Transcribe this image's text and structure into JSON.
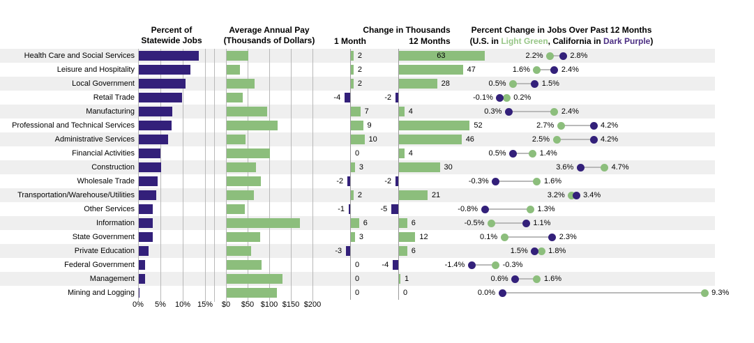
{
  "colors": {
    "purple": "#33207a",
    "green": "#8cbe7c",
    "stripe": "#efefef",
    "legend_green": "#97c687",
    "legend_purple": "#4b2e83",
    "gridline": "#b8b8b8"
  },
  "headers": {
    "jobs_line1": "Percent of",
    "jobs_line2": "Statewide Jobs",
    "pay_line1": "Average Annual Pay",
    "pay_line2": "(Thousands of Dollars)",
    "change_title": "Change in Thousands",
    "change_col1": "1 Month",
    "change_col2": "12 Months",
    "pct_title": "Percent Change in Jobs Over Past 12 Months",
    "pct_sub_p1": "(U.S. in ",
    "pct_sub_green": "Light Green",
    "pct_sub_p2": ", California in ",
    "pct_sub_purple": "Dark Purple",
    "pct_sub_p3": ")"
  },
  "axes": {
    "jobs_ticks": [
      "0%",
      "5%",
      "10%",
      "15%"
    ],
    "pay_ticks": [
      "$0",
      "$50",
      "$100",
      "$150",
      "$200"
    ]
  },
  "chart_data": {
    "type": "table",
    "notes": "Four linked panels sharing 18 industry rows: purple bar chart of percent of statewide jobs (0-15% axis), green bar chart of average annual pay in $ thousands ($0-$200 axis), 1-month and 12-month employment change in thousands (green positive, purple negative bars), and a dumbbell plot of 12-month percent change (U.S. light green dot, California dark purple dot).",
    "columns": [
      "Industry",
      "Percent of Statewide Jobs",
      "Average Annual Pay ($K)",
      "Change 1 Month (thousands)",
      "Change 12 Months (thousands)",
      "US 12-mo % Change",
      "CA 12-mo % Change"
    ],
    "rows": [
      {
        "label": "Health Care and Social Services",
        "statewide_pct": 13.4,
        "pay_k": 50,
        "chg_1m": 2,
        "chg_12m": 63,
        "us_pct": 2.2,
        "ca_pct": 2.8
      },
      {
        "label": "Leisure and Hospitality",
        "statewide_pct": 11.6,
        "pay_k": 31,
        "chg_1m": 2,
        "chg_12m": 47,
        "us_pct": 1.6,
        "ca_pct": 2.4
      },
      {
        "label": "Local Government",
        "statewide_pct": 10.5,
        "pay_k": 64,
        "chg_1m": 2,
        "chg_12m": 28,
        "us_pct": 0.5,
        "ca_pct": 1.5
      },
      {
        "label": "Retail Trade",
        "statewide_pct": 9.7,
        "pay_k": 37,
        "chg_1m": -4,
        "chg_12m": -2,
        "us_pct": 0.2,
        "ca_pct": -0.1
      },
      {
        "label": "Manufacturing",
        "statewide_pct": 7.5,
        "pay_k": 93,
        "chg_1m": 7,
        "chg_12m": 4,
        "us_pct": 2.4,
        "ca_pct": 0.3
      },
      {
        "label": "Professional and Technical Services",
        "statewide_pct": 7.3,
        "pay_k": 117,
        "chg_1m": 9,
        "chg_12m": 52,
        "us_pct": 2.7,
        "ca_pct": 4.2
      },
      {
        "label": "Administrative Services",
        "statewide_pct": 6.6,
        "pay_k": 44,
        "chg_1m": 10,
        "chg_12m": 46,
        "us_pct": 2.5,
        "ca_pct": 4.2
      },
      {
        "label": "Financial Activities",
        "statewide_pct": 4.8,
        "pay_k": 100,
        "chg_1m": 0,
        "chg_12m": 4,
        "us_pct": 1.4,
        "ca_pct": 0.5
      },
      {
        "label": "Construction",
        "statewide_pct": 5.0,
        "pay_k": 68,
        "chg_1m": 3,
        "chg_12m": 30,
        "us_pct": 4.7,
        "ca_pct": 3.6
      },
      {
        "label": "Wholesale Trade",
        "statewide_pct": 4.2,
        "pay_k": 79,
        "chg_1m": -2,
        "chg_12m": -2,
        "us_pct": 1.6,
        "ca_pct": -0.3
      },
      {
        "label": "Transportation/Warehouse/Utilities",
        "statewide_pct": 3.9,
        "pay_k": 63,
        "chg_1m": 2,
        "chg_12m": 21,
        "us_pct": 3.2,
        "ca_pct": 3.4
      },
      {
        "label": "Other Services",
        "statewide_pct": 3.2,
        "pay_k": 42,
        "chg_1m": -1,
        "chg_12m": -5,
        "us_pct": 1.3,
        "ca_pct": -0.8
      },
      {
        "label": "Information",
        "statewide_pct": 3.1,
        "pay_k": 169,
        "chg_1m": 6,
        "chg_12m": 6,
        "us_pct": -0.5,
        "ca_pct": 1.1
      },
      {
        "label": "State Government",
        "statewide_pct": 3.1,
        "pay_k": 77,
        "chg_1m": 3,
        "chg_12m": 12,
        "us_pct": 0.1,
        "ca_pct": 2.3
      },
      {
        "label": "Private Education",
        "statewide_pct": 2.2,
        "pay_k": 56,
        "chg_1m": -3,
        "chg_12m": 6,
        "us_pct": 1.8,
        "ca_pct": 1.5
      },
      {
        "label": "Federal Government",
        "statewide_pct": 1.4,
        "pay_k": 81,
        "chg_1m": 0,
        "chg_12m": -4,
        "us_pct": -0.3,
        "ca_pct": -1.4
      },
      {
        "label": "Management",
        "statewide_pct": 1.4,
        "pay_k": 129,
        "chg_1m": 0,
        "chg_12m": 1,
        "us_pct": 1.6,
        "ca_pct": 0.6
      },
      {
        "label": "Mining and Logging",
        "statewide_pct": 0.1,
        "pay_k": 116,
        "chg_1m": 0,
        "chg_12m": 0,
        "us_pct": 9.3,
        "ca_pct": 0.0
      }
    ]
  }
}
